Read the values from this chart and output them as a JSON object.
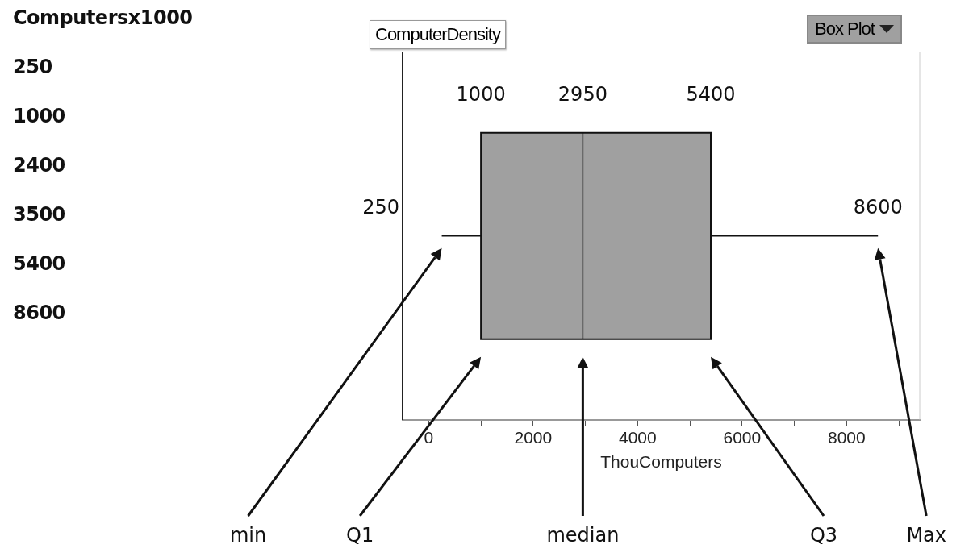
{
  "chart_data": {
    "type": "box",
    "orientation": "horizontal",
    "ylabel": "ComputerDensity",
    "xlabel": "ThouComputers",
    "categories": [
      null
    ],
    "color": "#a0a0a0",
    "boxes": [
      {
        "low": 250,
        "q1": 1000,
        "median": 2950,
        "q3": 5400,
        "high": 8600
      }
    ],
    "xlim": [
      -500,
      9400
    ],
    "xticks": [
      0,
      {
        "value": 1000,
        "label": null
      },
      2000,
      {
        "value": 3000,
        "label": null
      },
      4000,
      {
        "value": 5000,
        "label": null
      },
      6000,
      {
        "value": 7000,
        "label": null
      },
      8000,
      {
        "value": 9000,
        "label": null
      }
    ],
    "grid": false,
    "legend": false,
    "annotations": [
      "Computersx1000",
      "250",
      "1000",
      "2400",
      "3500",
      "5400",
      "8600",
      "250",
      "1000",
      "2950",
      "5400",
      "8600",
      "min",
      "Q1",
      "median",
      "Q3",
      "Max",
      "Box Plot"
    ]
  }
}
